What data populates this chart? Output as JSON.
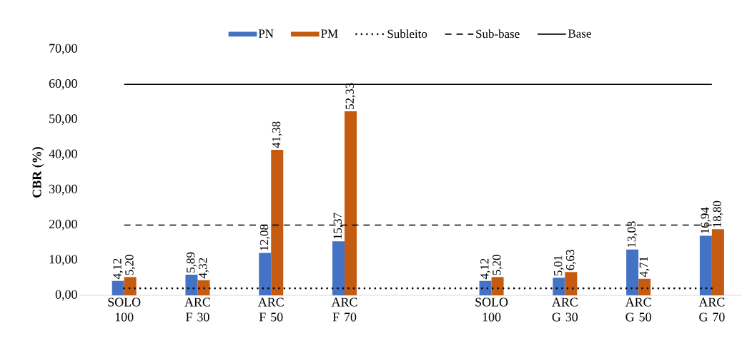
{
  "chart_data": {
    "type": "bar",
    "ylabel": "CBR (%)",
    "categories": [
      "SOLO 100",
      "ARC F 30",
      "ARC F 50",
      "ARC F 70",
      null,
      "SOLO 100",
      "ARC G 30",
      "ARC G 50",
      "ARC G 70"
    ],
    "series": [
      {
        "name": "PN",
        "color": "#4472c4",
        "values": [
          4.12,
          5.89,
          12.08,
          15.37,
          null,
          4.12,
          5.01,
          13.03,
          16.94
        ],
        "value_labels": [
          "4,12",
          "5,89",
          "12,08",
          "15,37",
          null,
          "4,12",
          "5,01",
          "13,03",
          "16,94"
        ]
      },
      {
        "name": "PM",
        "color": "#c55a11",
        "values": [
          5.2,
          4.32,
          41.38,
          52.33,
          null,
          5.2,
          6.63,
          4.71,
          18.8
        ],
        "value_labels": [
          "5,20",
          "4,32",
          "41,38",
          "52,33",
          null,
          "5,20",
          "6,63",
          "4,71",
          "18,80"
        ]
      },
      {
        "name": "Subleito",
        "type": "line",
        "line_style": "dotted",
        "color": "#000000",
        "values": [
          2,
          2,
          2,
          2,
          2,
          2,
          2,
          2,
          2
        ]
      },
      {
        "name": "Sub-base",
        "type": "line",
        "line_style": "dashed",
        "color": "#000000",
        "values": [
          20,
          20,
          20,
          20,
          20,
          20,
          20,
          20,
          20
        ]
      },
      {
        "name": "Base",
        "type": "line",
        "line_style": "solid",
        "color": "#000000",
        "values": [
          60,
          60,
          60,
          60,
          60,
          60,
          60,
          60,
          60
        ]
      }
    ],
    "ylim": [
      0,
      70
    ],
    "yticks": [
      {
        "value": 0,
        "label": "0,00"
      },
      {
        "value": 10,
        "label": "10,00"
      },
      {
        "value": 20,
        "label": "20,00"
      },
      {
        "value": 30,
        "label": "30,00"
      },
      {
        "value": 40,
        "label": "40,00"
      },
      {
        "value": 50,
        "label": "50,00"
      },
      {
        "value": 60,
        "label": "60,00"
      },
      {
        "value": 70,
        "label": "70,00"
      }
    ],
    "legend": "top",
    "grid": false
  }
}
